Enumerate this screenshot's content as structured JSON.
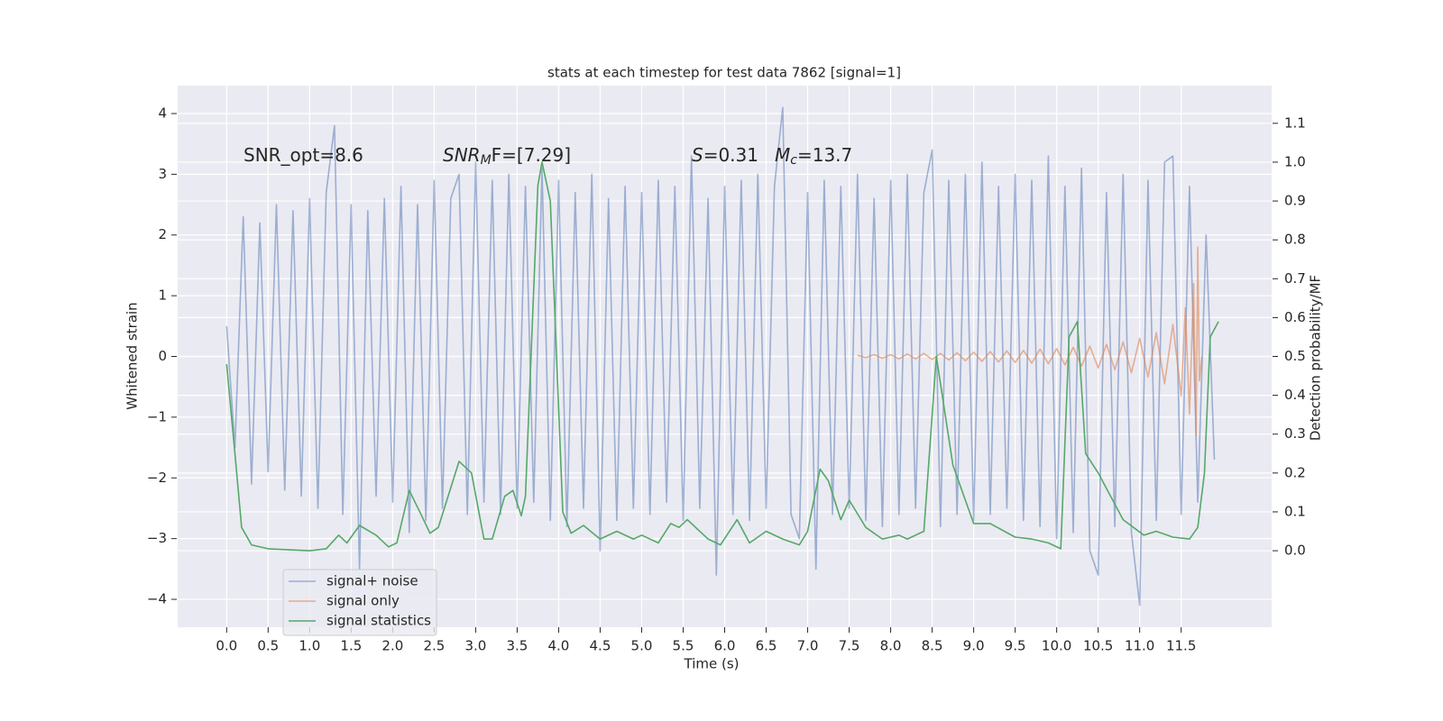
{
  "chart_data": {
    "type": "line",
    "title": "stats at each timestep for test data 7862 [signal=1]",
    "xlabel": "Time (s)",
    "ylabel": "Whitened strain",
    "y2label": "Detection probability/MF",
    "xlim": [
      -0.59,
      12.59
    ],
    "ylim": [
      -4.46,
      4.46
    ],
    "y2lim": [
      -0.197,
      1.197
    ],
    "xticks": [
      {
        "value": 0,
        "label": "0.0"
      },
      0.5,
      {
        "value": 1,
        "label": "1.0"
      },
      1.5,
      {
        "value": 2,
        "label": "2.0"
      },
      2.5,
      {
        "value": 3,
        "label": "3.0"
      },
      3.5,
      {
        "value": 4,
        "label": "4.0"
      },
      4.5,
      {
        "value": 5,
        "label": "5.0"
      },
      5.5,
      {
        "value": 6,
        "label": "6.0"
      },
      6.5,
      {
        "value": 7,
        "label": "7.0"
      },
      7.5,
      {
        "value": 8,
        "label": "8.0"
      },
      8.5,
      {
        "value": 9,
        "label": "9.0"
      },
      9.5,
      {
        "value": 10,
        "label": "10.0"
      },
      10.5,
      {
        "value": 11,
        "label": "11.0"
      },
      11.5
    ],
    "yticks": [
      {
        "value": -4,
        "label": "−4"
      },
      {
        "value": -3,
        "label": "−3"
      },
      {
        "value": -2,
        "label": "−2"
      },
      {
        "value": -1,
        "label": "−1"
      },
      0,
      1,
      2,
      3,
      4
    ],
    "y2ticks": [
      {
        "value": 0,
        "label": "0.0"
      },
      0.1,
      0.2,
      0.3,
      0.4,
      0.5,
      0.6,
      0.7,
      0.8,
      0.9,
      {
        "value": 1,
        "label": "1.0"
      },
      1.1
    ],
    "grid": true,
    "legend": "lower left",
    "annotations": [
      {
        "parts": [
          {
            "text": "SNR_opt=8.6"
          }
        ]
      },
      {
        "parts": [
          {
            "text": "SNR",
            "italic": true
          },
          {
            "text": "M",
            "italic": true,
            "sub": true
          },
          {
            "text": "F=[7.29]"
          }
        ]
      },
      {
        "parts": [
          {
            "text": "S",
            "italic": true
          },
          {
            "text": "=0.31"
          }
        ]
      },
      {
        "parts": [
          {
            "text": "M",
            "italic": true
          },
          {
            "text": "c",
            "italic": true,
            "sub": true
          },
          {
            "text": "=13.7"
          }
        ]
      }
    ],
    "series": [
      {
        "name": "signal+ noise",
        "color": "#4c72b0",
        "opacity": 0.5,
        "x": [
          0,
          0.1,
          0.2,
          0.3,
          0.4,
          0.5,
          0.6,
          0.7,
          0.8,
          0.9,
          1,
          1.1,
          1.2,
          1.3,
          1.4,
          1.5,
          1.6,
          1.7,
          1.8,
          1.9,
          2,
          2.1,
          2.2,
          2.3,
          2.4,
          2.5,
          2.6,
          2.7,
          2.8,
          2.9,
          3,
          3.1,
          3.2,
          3.3,
          3.4,
          3.5,
          3.6,
          3.7,
          3.8,
          3.9,
          4,
          4.1,
          4.2,
          4.3,
          4.4,
          4.5,
          4.6,
          4.7,
          4.8,
          4.9,
          5,
          5.1,
          5.2,
          5.3,
          5.4,
          5.5,
          5.6,
          5.7,
          5.8,
          5.9,
          6,
          6.1,
          6.2,
          6.3,
          6.4,
          6.5,
          6.6,
          6.7,
          6.8,
          6.9,
          7,
          7.1,
          7.2,
          7.3,
          7.4,
          7.5,
          7.6,
          7.7,
          7.8,
          7.9,
          8,
          8.1,
          8.2,
          8.3,
          8.4,
          8.5,
          8.6,
          8.7,
          8.8,
          8.9,
          9,
          9.1,
          9.2,
          9.3,
          9.4,
          9.5,
          9.6,
          9.7,
          9.8,
          9.9,
          10,
          10.1,
          10.2,
          10.3,
          10.4,
          10.5,
          10.6,
          10.7,
          10.8,
          10.9,
          11,
          11.1,
          11.2,
          11.3,
          11.4,
          11.5,
          11.6,
          11.7,
          11.8,
          11.9
        ],
        "values": [
          0.5,
          -1.5,
          2.3,
          -2.1,
          2.2,
          -1.9,
          2.5,
          -2.2,
          2.4,
          -2.3,
          2.6,
          -2.5,
          2.7,
          3.8,
          -2.6,
          2.5,
          -3.5,
          2.4,
          -2.3,
          2.6,
          -2.4,
          2.8,
          -2.9,
          2.5,
          -2.7,
          2.9,
          -2.5,
          2.6,
          3.0,
          -2.6,
          3.2,
          -2.4,
          2.9,
          -2.6,
          3.0,
          -2.5,
          2.8,
          -2.4,
          3.1,
          -2.7,
          2.9,
          -2.8,
          2.7,
          -2.5,
          3.0,
          -3.2,
          2.6,
          -2.7,
          2.8,
          -2.5,
          2.7,
          -2.6,
          2.9,
          -2.4,
          2.8,
          -2.7,
          3.3,
          -2.5,
          2.6,
          -3.6,
          2.8,
          -2.6,
          2.9,
          -2.7,
          3.0,
          -2.5,
          2.8,
          4.1,
          -2.6,
          -3.0,
          2.7,
          -3.5,
          2.9,
          -2.6,
          2.8,
          -2.5,
          3.0,
          -2.7,
          2.6,
          -2.8,
          2.9,
          -2.6,
          3.0,
          -2.5,
          2.7,
          3.4,
          -2.8,
          2.9,
          -2.6,
          3.0,
          -2.7,
          3.2,
          -2.6,
          2.8,
          -2.5,
          3.0,
          -2.7,
          2.9,
          -2.8,
          3.3,
          -3.0,
          2.8,
          -2.9,
          3.1,
          -3.2,
          -3.6,
          2.7,
          -2.8,
          3.0,
          -2.9,
          -4.1,
          2.9,
          -2.7,
          3.2,
          3.3,
          -2.6,
          2.8,
          -2.4,
          2.0,
          -1.7
        ]
      },
      {
        "name": "signal only",
        "color": "#dd8452",
        "opacity": 0.6,
        "x": [
          7.6,
          7.7,
          7.8,
          7.9,
          8,
          8.1,
          8.2,
          8.3,
          8.4,
          8.5,
          8.6,
          8.7,
          8.8,
          8.9,
          9,
          9.1,
          9.2,
          9.3,
          9.4,
          9.5,
          9.6,
          9.7,
          9.8,
          9.9,
          10,
          10.1,
          10.2,
          10.3,
          10.4,
          10.5,
          10.6,
          10.7,
          10.8,
          10.9,
          11,
          11.1,
          11.2,
          11.3,
          11.4,
          11.5,
          11.55,
          11.6,
          11.65,
          11.68,
          11.7,
          11.72,
          11.75
        ],
        "values": [
          0.02,
          -0.02,
          0.03,
          -0.03,
          0.03,
          -0.04,
          0.04,
          -0.04,
          0.05,
          -0.05,
          0.05,
          -0.06,
          0.06,
          -0.07,
          0.07,
          -0.08,
          0.08,
          -0.09,
          0.09,
          -0.1,
          0.1,
          -0.11,
          0.12,
          -0.12,
          0.13,
          -0.14,
          0.15,
          -0.16,
          0.17,
          -0.19,
          0.2,
          -0.22,
          0.24,
          -0.27,
          0.3,
          -0.34,
          0.39,
          -0.45,
          0.53,
          -0.65,
          0.8,
          -0.95,
          1.2,
          -1.3,
          1.8,
          -0.4,
          0
        ]
      },
      {
        "name": "signal statistics",
        "color": "#55a868",
        "axis": "y2",
        "opacity": 1,
        "x": [
          0,
          0.1,
          0.18,
          0.3,
          0.5,
          0.7,
          1.0,
          1.2,
          1.35,
          1.45,
          1.6,
          1.8,
          1.95,
          2.05,
          2.2,
          2.35,
          2.45,
          2.55,
          2.8,
          2.95,
          3.1,
          3.2,
          3.35,
          3.45,
          3.55,
          3.6,
          3.75,
          3.8,
          3.9,
          4.05,
          4.15,
          4.3,
          4.5,
          4.7,
          4.9,
          5.0,
          5.2,
          5.35,
          5.45,
          5.55,
          5.8,
          5.95,
          6.15,
          6.3,
          6.5,
          6.7,
          6.9,
          7.0,
          7.15,
          7.25,
          7.4,
          7.5,
          7.7,
          7.9,
          8.1,
          8.2,
          8.4,
          8.55,
          8.75,
          9.0,
          9.2,
          9.5,
          9.7,
          9.9,
          10.05,
          10.15,
          10.25,
          10.35,
          10.5,
          10.8,
          11.05,
          11.2,
          11.4,
          11.6,
          11.7,
          11.78,
          11.85,
          11.95
        ],
        "values": [
          0.48,
          0.25,
          0.06,
          0.015,
          0.005,
          0.003,
          0.0,
          0.005,
          0.04,
          0.02,
          0.065,
          0.04,
          0.01,
          0.02,
          0.155,
          0.09,
          0.045,
          0.06,
          0.23,
          0.2,
          0.03,
          0.03,
          0.14,
          0.155,
          0.09,
          0.14,
          0.94,
          1.0,
          0.9,
          0.1,
          0.045,
          0.065,
          0.03,
          0.05,
          0.03,
          0.04,
          0.02,
          0.07,
          0.06,
          0.08,
          0.03,
          0.015,
          0.08,
          0.02,
          0.05,
          0.03,
          0.015,
          0.05,
          0.21,
          0.18,
          0.08,
          0.13,
          0.06,
          0.03,
          0.04,
          0.03,
          0.05,
          0.5,
          0.22,
          0.07,
          0.07,
          0.035,
          0.03,
          0.02,
          0.005,
          0.55,
          0.59,
          0.25,
          0.2,
          0.08,
          0.04,
          0.05,
          0.035,
          0.03,
          0.06,
          0.2,
          0.55,
          0.59
        ]
      }
    ]
  }
}
